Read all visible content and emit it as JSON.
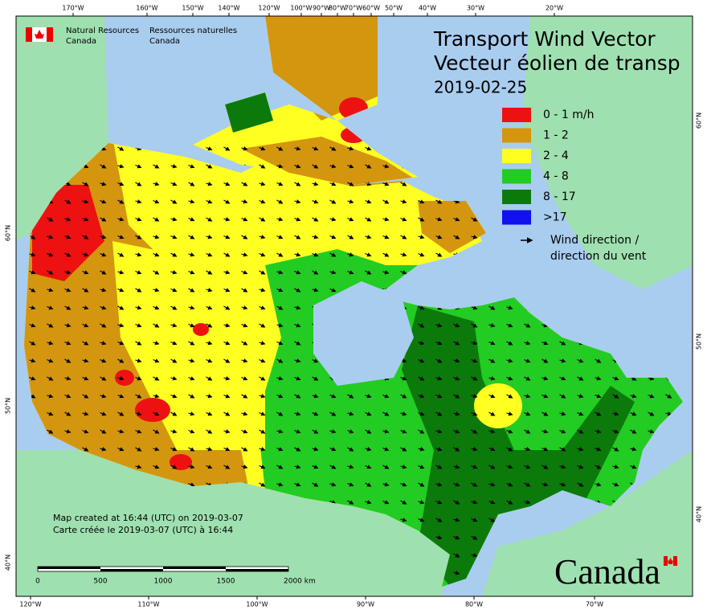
{
  "header": {
    "agency_en": "Natural Resources",
    "agency_en_country": "Canada",
    "agency_fr": "Ressources naturelles",
    "agency_fr_country": "Canada"
  },
  "title": {
    "line1": "Transport Wind Vector",
    "line2": "Vecteur éolien de transp",
    "date": "2019-02-25"
  },
  "legend": {
    "items": [
      {
        "label": "0 - 1 m/h",
        "color": "#ee1111"
      },
      {
        "label": "1 - 2",
        "color": "#d4960f"
      },
      {
        "label": "2 - 4",
        "color": "#ffff22"
      },
      {
        "label": "4 - 8",
        "color": "#22cc22"
      },
      {
        "label": "8 - 17",
        "color": "#0b7a0b"
      },
      {
        "label": ">17",
        "color": "#1111ee"
      }
    ],
    "arrow_label_line1": "Wind direction /",
    "arrow_label_line2": "direction du vent"
  },
  "axes": {
    "top": [
      "170°W",
      "160°W",
      "150°W",
      "140°W",
      "120°W",
      "100°W",
      "90°W",
      "80°W",
      "70°W",
      "60°W",
      "50°W",
      "40°W",
      "30°W",
      "20°W"
    ],
    "bottom": [
      "120°W",
      "110°W",
      "100°W",
      "90°W",
      "80°W",
      "70°W"
    ],
    "left": [
      "60°N",
      "50°N",
      "40°N"
    ],
    "right": [
      "60°N",
      "50°N",
      "40°N"
    ]
  },
  "scale_bar": [
    "0",
    "500",
    "1000",
    "1500",
    "2000 km"
  ],
  "footer": {
    "line1": "Map created at 16:44 (UTC) on 2019-03-07",
    "line2": "Carte créée le 2019-03-07 (UTC) à 16:44"
  },
  "wordmark": "Canada"
}
